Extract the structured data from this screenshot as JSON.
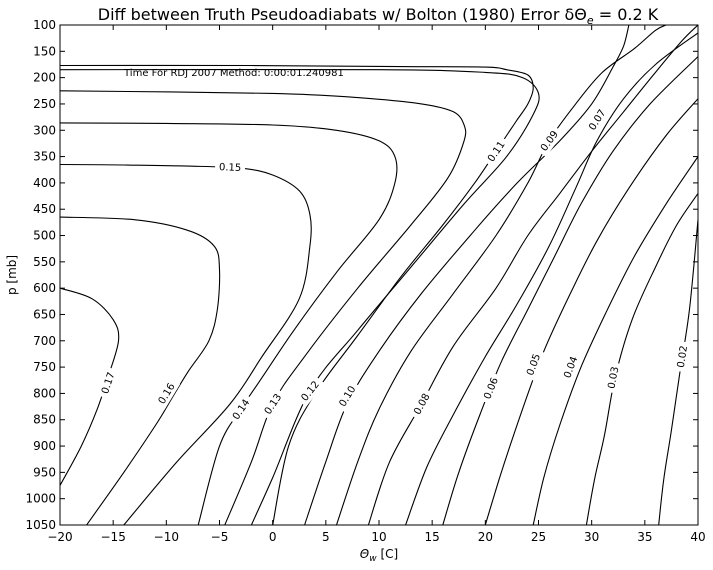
{
  "chart_data": {
    "type": "contour",
    "title": "Diff between Truth Pseudoadiabats w/ Bolton (1980) Error δΘ",
    "title_sub": "e",
    "title_tail": " = 0.2  K",
    "xlabel": "Θ",
    "xlabel_sub": "w",
    "xlabel_tail": " [C]",
    "ylabel": "p [mb]",
    "xlim": [
      -20,
      40
    ],
    "ylim": [
      1050,
      100
    ],
    "y_inverted": true,
    "x_ticks": [
      -20,
      -15,
      -10,
      -5,
      0,
      5,
      10,
      15,
      20,
      25,
      30,
      35,
      40
    ],
    "y_ticks": [
      100,
      150,
      200,
      250,
      300,
      350,
      400,
      450,
      500,
      550,
      600,
      650,
      700,
      750,
      800,
      850,
      900,
      950,
      1000,
      1050
    ],
    "annotation": "Time For RDJ 2007 Method: 0:00:01.240981",
    "grid": false,
    "line_color": "#000000",
    "levels": [
      {
        "level": "0.17",
        "label_at": [
          -15.5,
          780
        ],
        "points": [
          [
            -20,
            975
          ],
          [
            -18,
            900
          ],
          [
            -16.5,
            830
          ],
          [
            -15.5,
            770
          ],
          [
            -14.5,
            700
          ],
          [
            -15,
            660
          ],
          [
            -17,
            620
          ],
          [
            -20,
            600
          ]
        ]
      },
      {
        "level": "0.16",
        "label_at": [
          -10,
          800
        ],
        "points": [
          [
            -17.5,
            1050
          ],
          [
            -14,
            950
          ],
          [
            -11,
            860
          ],
          [
            -9.5,
            810
          ],
          [
            -8,
            760
          ],
          [
            -6,
            700
          ],
          [
            -5.2,
            640
          ],
          [
            -5,
            565
          ],
          [
            -5.5,
            520
          ],
          [
            -8,
            490
          ],
          [
            -13,
            470
          ],
          [
            -20,
            465
          ]
        ]
      },
      {
        "level": "0.15",
        "label_at": [
          -4,
          370
        ],
        "points": [
          [
            -14,
            1050
          ],
          [
            -9,
            930
          ],
          [
            -4,
            820
          ],
          [
            -1,
            730
          ],
          [
            2.5,
            620
          ],
          [
            3.5,
            520
          ],
          [
            3.5,
            460
          ],
          [
            2.5,
            415
          ],
          [
            0,
            385
          ],
          [
            -3,
            372
          ],
          [
            -8,
            368
          ],
          [
            -14,
            366
          ],
          [
            -20,
            365
          ]
        ]
      },
      {
        "level": "0.14",
        "label_at": [
          -3,
          830
        ],
        "points": [
          [
            -7,
            1050
          ],
          [
            -5,
            900
          ],
          [
            -3,
            830
          ],
          [
            -1,
            770
          ],
          [
            2,
            680
          ],
          [
            6,
            570
          ],
          [
            10,
            470
          ],
          [
            11.5,
            400
          ],
          [
            11.5,
            350
          ],
          [
            10,
            320
          ],
          [
            6,
            300
          ],
          [
            0,
            290
          ],
          [
            -10,
            287
          ],
          [
            -20,
            286
          ]
        ]
      },
      {
        "level": "0.13",
        "label_at": [
          0,
          820
        ],
        "points": [
          [
            -4.5,
            1050
          ],
          [
            -2,
            930
          ],
          [
            0,
            820
          ],
          [
            3,
            730
          ],
          [
            8,
            600
          ],
          [
            13,
            480
          ],
          [
            16.5,
            390
          ],
          [
            18,
            320
          ],
          [
            18,
            290
          ],
          [
            17,
            265
          ],
          [
            14,
            250
          ],
          [
            8,
            238
          ],
          [
            0,
            230
          ],
          [
            -20,
            225
          ]
        ]
      },
      {
        "level": "0.12",
        "label_at": [
          3.5,
          795
        ],
        "points": [
          [
            -2,
            1050
          ],
          [
            0,
            960
          ],
          [
            3.5,
            795
          ],
          [
            8,
            680
          ],
          [
            13,
            560
          ],
          [
            18,
            440
          ],
          [
            22,
            350
          ],
          [
            24.5,
            270
          ],
          [
            25,
            230
          ],
          [
            23.5,
            200
          ],
          [
            20,
            190
          ],
          [
            10,
            185
          ],
          [
            -20,
            185
          ]
        ]
      },
      {
        "level": "0.11",
        "label_at": [
          21,
          340
        ],
        "points": [
          [
            -20,
            177
          ],
          [
            -2,
            177
          ],
          [
            12,
            179
          ],
          [
            20,
            180
          ],
          [
            22,
            185
          ],
          [
            24,
            195
          ],
          [
            24.5,
            220
          ],
          [
            24,
            250
          ],
          [
            23,
            280
          ],
          [
            22,
            310
          ],
          [
            21,
            340
          ],
          [
            19,
            400
          ],
          [
            16,
            480
          ],
          [
            12,
            580
          ],
          [
            8,
            690
          ],
          [
            4,
            800
          ],
          [
            1.5,
            900
          ],
          [
            0,
            1050
          ]
        ]
      },
      {
        "level": "0.10",
        "label_at": [
          7,
          805
        ],
        "points": [
          [
            3,
            1050
          ],
          [
            5,
            930
          ],
          [
            7,
            820
          ],
          [
            10,
            720
          ],
          [
            14,
            610
          ],
          [
            19,
            490
          ],
          [
            23,
            400
          ],
          [
            27,
            320
          ],
          [
            30,
            250
          ],
          [
            32,
            180
          ],
          [
            33,
            140
          ],
          [
            33.5,
            100
          ]
        ]
      },
      {
        "level": "0.09",
        "label_at": [
          26,
          320
        ],
        "points": [
          [
            6,
            1050
          ],
          [
            8,
            930
          ],
          [
            10,
            830
          ],
          [
            13,
            720
          ],
          [
            17,
            610
          ],
          [
            21,
            500
          ],
          [
            24,
            400
          ],
          [
            26,
            320
          ],
          [
            28.5,
            250
          ],
          [
            31,
            190
          ],
          [
            34,
            145
          ],
          [
            36,
            110
          ],
          [
            37,
            100
          ]
        ]
      },
      {
        "level": "0.08",
        "label_at": [
          14,
          820
        ],
        "points": [
          [
            9,
            1050
          ],
          [
            11,
            930
          ],
          [
            14,
            820
          ],
          [
            17,
            710
          ],
          [
            21,
            600
          ],
          [
            24,
            500
          ],
          [
            27,
            420
          ],
          [
            30,
            340
          ],
          [
            33,
            265
          ],
          [
            36,
            190
          ],
          [
            38.5,
            130
          ],
          [
            40,
            100
          ]
        ]
      },
      {
        "level": "0.07",
        "label_at": [
          30.5,
          280
        ],
        "points": [
          [
            12.5,
            1050
          ],
          [
            14.5,
            940
          ],
          [
            17,
            840
          ],
          [
            20,
            730
          ],
          [
            23,
            630
          ],
          [
            26,
            520
          ],
          [
            28.5,
            410
          ],
          [
            30.5,
            320
          ],
          [
            33,
            240
          ],
          [
            36,
            175
          ],
          [
            40,
            115
          ]
        ]
      },
      {
        "level": "0.06",
        "label_at": [
          20.5,
          790
        ],
        "points": [
          [
            16,
            1050
          ],
          [
            17.5,
            950
          ],
          [
            19.5,
            840
          ],
          [
            21.5,
            740
          ],
          [
            24,
            640
          ],
          [
            26.5,
            540
          ],
          [
            29,
            440
          ],
          [
            32,
            340
          ],
          [
            35.5,
            250
          ],
          [
            40,
            160
          ]
        ]
      },
      {
        "level": "0.05",
        "label_at": [
          24.5,
          745
        ],
        "points": [
          [
            20,
            1050
          ],
          [
            21.5,
            950
          ],
          [
            23.5,
            830
          ],
          [
            25.5,
            720
          ],
          [
            28,
            610
          ],
          [
            30.5,
            510
          ],
          [
            33.5,
            410
          ],
          [
            37,
            310
          ],
          [
            40,
            240
          ]
        ]
      },
      {
        "level": "0.04",
        "label_at": [
          28,
          750
        ],
        "points": [
          [
            24.5,
            1050
          ],
          [
            25.5,
            960
          ],
          [
            27,
            860
          ],
          [
            29,
            750
          ],
          [
            31.5,
            640
          ],
          [
            34,
            540
          ],
          [
            37,
            440
          ],
          [
            40,
            350
          ]
        ]
      },
      {
        "level": "0.03",
        "label_at": [
          32,
          770
        ],
        "points": [
          [
            29.5,
            1050
          ],
          [
            30.3,
            960
          ],
          [
            31.2,
            880
          ],
          [
            32.2,
            770
          ],
          [
            33.8,
            660
          ],
          [
            36,
            560
          ],
          [
            38,
            480
          ],
          [
            40,
            420
          ]
        ]
      },
      {
        "level": "0.02",
        "label_at": [
          38.5,
          730
        ],
        "points": [
          [
            36.3,
            1050
          ],
          [
            36.8,
            960
          ],
          [
            37.5,
            870
          ],
          [
            38.3,
            760
          ],
          [
            39.2,
            640
          ],
          [
            40,
            470
          ]
        ]
      }
    ]
  }
}
